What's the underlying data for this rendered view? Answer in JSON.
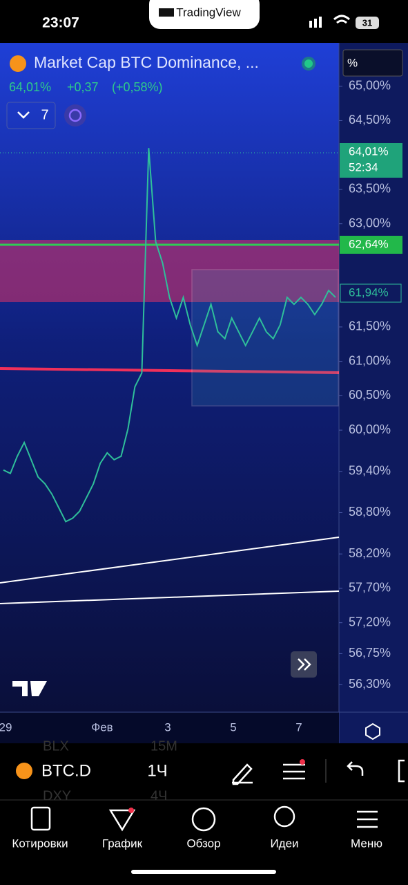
{
  "status_bar": {
    "time": "23:07",
    "app_badge": "TradingView",
    "battery": "31"
  },
  "header": {
    "symbol_title": "Market Cap BTC Dominance, ...",
    "last": "64,01%",
    "change": "+0,37",
    "change_pct": "(+0,58%)",
    "indicator_count": "7",
    "scale_mode": "%"
  },
  "chart_data": {
    "type": "line",
    "color": "#2fbf9a",
    "values": [
      59.42,
      59.37,
      59.62,
      59.82,
      59.57,
      59.32,
      59.22,
      59.07,
      58.87,
      58.67,
      58.72,
      58.82,
      59.02,
      59.22,
      59.52,
      59.67,
      59.57,
      59.62,
      60.02,
      60.63,
      60.83,
      64.1,
      62.74,
      62.43,
      61.93,
      61.63,
      61.93,
      61.53,
      61.23,
      61.53,
      61.83,
      61.43,
      61.33,
      61.63,
      61.43,
      61.23,
      61.43,
      61.63,
      61.43,
      61.33,
      61.53,
      61.93,
      61.83,
      61.93,
      61.83,
      61.68,
      61.83,
      62.03,
      61.93
    ],
    "ylim": [
      65.6,
      55.9
    ],
    "yticks": [
      {
        "value": 65.0,
        "label": "65,00%"
      },
      {
        "value": 64.5,
        "label": "64,50%"
      },
      {
        "value": 63.5,
        "label": "63,50%"
      },
      {
        "value": 63.0,
        "label": "63,00%"
      },
      {
        "value": 61.5,
        "label": "61,50%"
      },
      {
        "value": 61.0,
        "label": "61,00%"
      },
      {
        "value": 60.5,
        "label": "60,50%"
      },
      {
        "value": 60.0,
        "label": "60,00%"
      },
      {
        "value": 59.4,
        "label": "59,40%"
      },
      {
        "value": 58.8,
        "label": "58,80%"
      },
      {
        "value": 58.2,
        "label": "58,20%"
      },
      {
        "value": 57.7,
        "label": "57,70%"
      },
      {
        "value": 57.2,
        "label": "57,20%"
      },
      {
        "value": 56.75,
        "label": "56,75%"
      },
      {
        "value": 56.3,
        "label": "56,30%"
      }
    ],
    "x_labels": [
      "29",
      "Фев",
      "3",
      "5",
      "7"
    ],
    "price_badges": [
      {
        "label": "64,01%",
        "timer": "52:34"
      },
      {
        "label": "62,64%"
      },
      {
        "label": "61,94%"
      }
    ]
  },
  "toolbar": {
    "symbol": "BTC.D",
    "interval": "1Ч",
    "ghost_rows": [
      "BLX",
      "15M",
      "DXY",
      "4Ч"
    ]
  },
  "nav": [
    "Котировки",
    "График",
    "Обзор",
    "Идеи",
    "Меню"
  ]
}
